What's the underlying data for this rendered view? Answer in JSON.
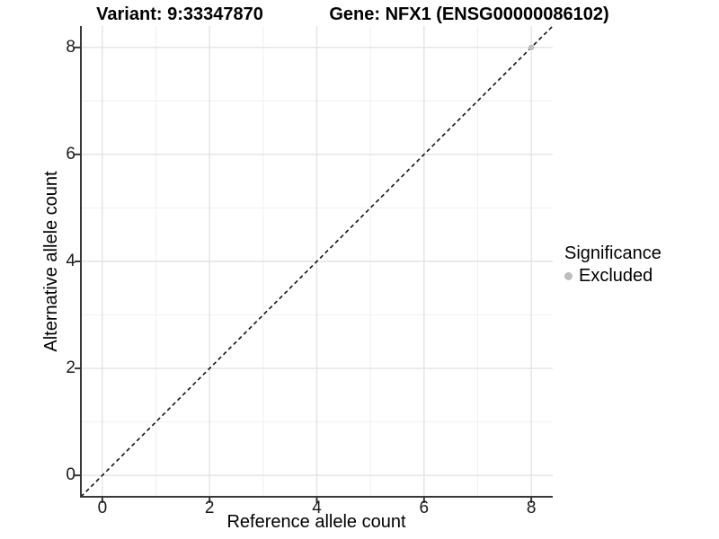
{
  "titles": {
    "variant": "Variant: 9:33347870",
    "gene": "Gene: NFX1 (ENSG00000086102)"
  },
  "legend": {
    "title": "Significance",
    "items": [
      {
        "label": "Excluded",
        "color": "#bebebe"
      }
    ]
  },
  "colors": {
    "axis_line": "#383838",
    "grid_major": "#e3e3e3",
    "grid_minor": "#f0f0f0",
    "identity_line": "#111111",
    "point": "#bebebe",
    "background": "#ffffff"
  },
  "chart_data": {
    "type": "scatter",
    "title_left": "Variant: 9:33347870",
    "title_right": "Gene: NFX1 (ENSG00000086102)",
    "xlabel": "Reference allele count",
    "ylabel": "Alternative allele count",
    "xlim": [
      -0.4,
      8.4
    ],
    "ylim": [
      -0.4,
      8.4
    ],
    "x_ticks": [
      0,
      2,
      4,
      6,
      8
    ],
    "y_ticks": [
      0,
      2,
      4,
      6,
      8
    ],
    "x_minor_ticks": [
      1,
      3,
      5,
      7
    ],
    "y_minor_ticks": [
      1,
      3,
      5,
      7
    ],
    "grid": true,
    "legend_position": "right",
    "identity_line": {
      "style": "dashed",
      "from": [
        -0.4,
        -0.4
      ],
      "to": [
        8.4,
        8.4
      ]
    },
    "series": [
      {
        "name": "Excluded",
        "color": "#bebebe",
        "points": [
          [
            8,
            8
          ]
        ]
      }
    ]
  }
}
